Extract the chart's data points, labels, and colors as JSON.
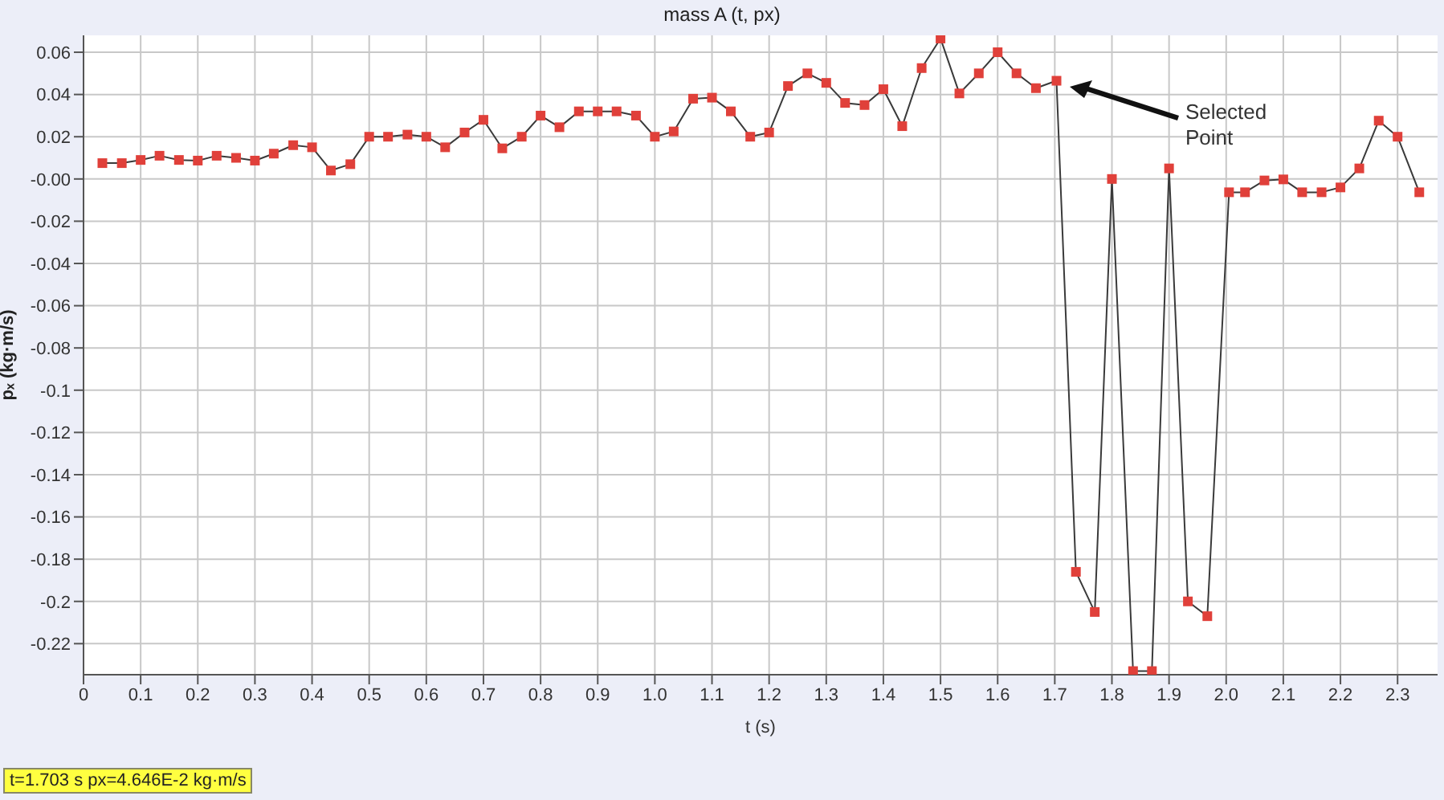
{
  "chart_data": {
    "type": "line",
    "title": "mass A (t, px)",
    "xlabel": "t (s)",
    "ylabel": "pₓ (kg·m/s)",
    "annotations": [
      "Selected Point",
      "t=1.703 s  px=4.646E-2 kg·m/s"
    ],
    "grid": true,
    "marker": "square",
    "line_style": "solid",
    "xlim": [
      0,
      2.37
    ],
    "ylim": [
      -0.2347,
      0.068
    ],
    "xticks": [
      0,
      0.1,
      0.2,
      0.3,
      0.4,
      0.5,
      0.6,
      0.7,
      0.8,
      0.9,
      {
        "value": 1,
        "label": "1.0"
      },
      1.1,
      1.2,
      1.3,
      1.4,
      1.5,
      1.6,
      1.7,
      1.8,
      1.9,
      {
        "value": 2,
        "label": "2.0"
      },
      2.1,
      2.2,
      2.3
    ],
    "yticks": [
      0.06,
      0.04,
      0.02,
      {
        "value": 0,
        "label": "-0.00"
      },
      -0.02,
      -0.04,
      -0.06,
      -0.08,
      -0.1,
      -0.12,
      -0.14,
      -0.16,
      -0.18,
      -0.2,
      -0.22
    ],
    "series": [
      {
        "color": "#3a3a3a",
        "colors": [
          "#e0403a",
          "#e0403a",
          "#e0403a",
          "#e0403a",
          "#e0403a",
          "#e0403a",
          "#e0403a",
          "#e0403a",
          "#e0403a",
          "#e0403a",
          "#e0403a",
          "#e0403a",
          "#e0403a",
          "#e0403a",
          "#e0403a",
          "#e0403a",
          "#e0403a",
          "#e0403a",
          "#e0403a",
          "#e0403a",
          "#e0403a",
          "#e0403a",
          "#e0403a",
          "#e0403a",
          "#e0403a",
          "#e0403a",
          "#e0403a",
          "#e0403a",
          "#e0403a",
          "#e0403a",
          "#e0403a",
          "#e0403a",
          "#e0403a",
          "#e0403a",
          "#e0403a",
          "#e0403a",
          "#e0403a",
          "#e0403a",
          "#e0403a",
          "#e0403a",
          "#e0403a",
          "#e0403a",
          "#e0403a",
          "#e0403a",
          "#e0403a",
          "#e0403a",
          "#e0403a",
          "#e0403a",
          "#e0403a",
          "#e0403a",
          "#e0403a",
          "#e0403a",
          "#e0403a",
          "#e0403a",
          "#e0403a",
          "#e0403a",
          "#e0403a",
          "#e0403a",
          "#e0403a",
          "#e0403a",
          "#e0403a",
          "#e0403a",
          "#e0403a",
          "#e0403a",
          "#e0403a",
          "#e0403a",
          "#e0403a",
          "#e0403a",
          "#e0403a",
          "#e0403a"
        ],
        "x": [
          0.033,
          0.067,
          0.1,
          0.133,
          0.167,
          0.2,
          0.233,
          0.267,
          0.3,
          0.333,
          0.367,
          0.4,
          0.433,
          0.467,
          0.5,
          0.533,
          0.567,
          0.6,
          0.633,
          0.667,
          0.7,
          0.733,
          0.767,
          0.8,
          0.833,
          0.867,
          0.9,
          0.933,
          0.967,
          1.0,
          1.033,
          1.067,
          1.1,
          1.133,
          1.167,
          1.2,
          1.233,
          1.267,
          1.3,
          1.333,
          1.367,
          1.4,
          1.433,
          1.467,
          1.5,
          1.533,
          1.567,
          1.6,
          1.633,
          1.667,
          1.703,
          1.737,
          1.77,
          1.8,
          1.837,
          1.87,
          1.9,
          1.933,
          1.967,
          2.005,
          2.033,
          2.067,
          2.1,
          2.133,
          2.167,
          2.2,
          2.233,
          2.267,
          2.3,
          2.338
        ],
        "values": [
          0.0075,
          0.0075,
          0.009,
          0.011,
          0.009,
          0.0087,
          0.011,
          0.01,
          0.0087,
          0.012,
          0.016,
          0.015,
          0.004,
          0.007,
          0.02,
          0.02,
          0.021,
          0.02,
          0.015,
          0.022,
          0.028,
          0.0145,
          0.02,
          0.03,
          0.0245,
          0.032,
          0.032,
          0.032,
          0.03,
          0.02,
          0.0225,
          0.038,
          0.0385,
          0.032,
          0.02,
          0.022,
          0.044,
          0.05,
          0.0455,
          0.036,
          0.035,
          0.0425,
          0.025,
          0.0525,
          0.0665,
          0.0405,
          0.05,
          0.06,
          0.05,
          0.043,
          0.0465,
          -0.186,
          -0.205,
          0.0,
          -0.233,
          -0.233,
          0.005,
          -0.2,
          -0.207,
          -0.0063,
          -0.0063,
          -0.0007,
          -0.0002,
          -0.0063,
          -0.0063,
          -0.004,
          0.005,
          0.0276,
          0.02,
          -0.0063
        ]
      }
    ]
  }
}
